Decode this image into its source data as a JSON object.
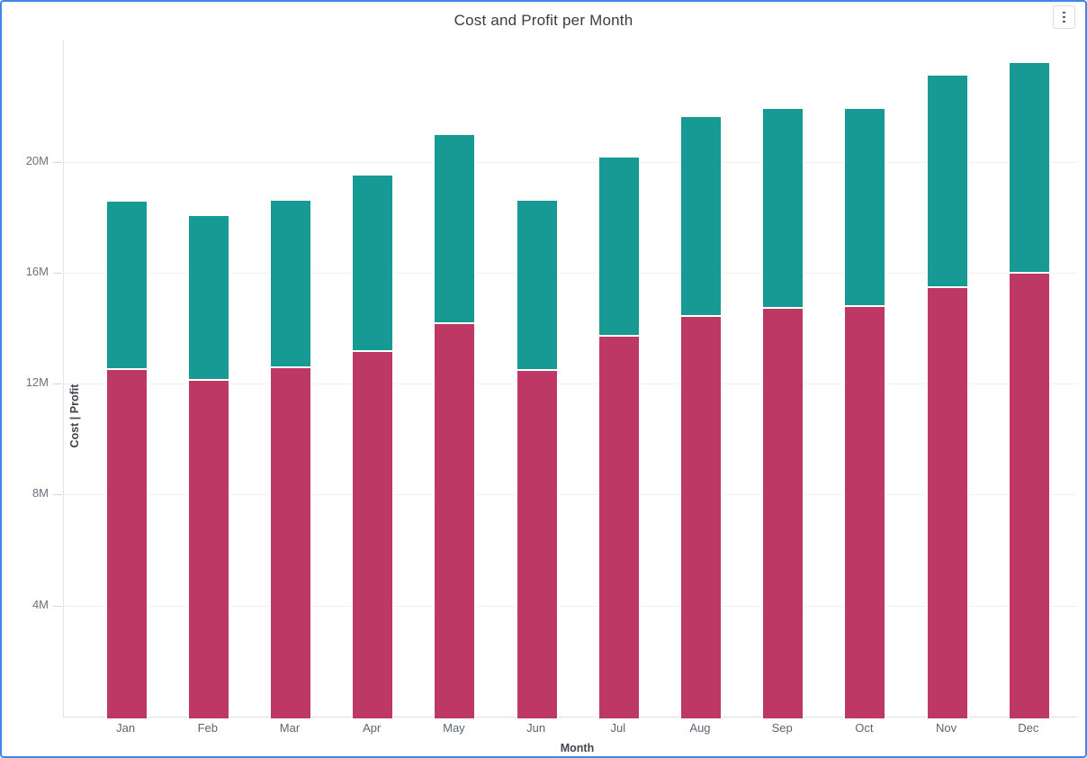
{
  "widget": {
    "selection_border_color": "#3e87e6",
    "menu_icon": "kebab-vertical-icon"
  },
  "chart_data": {
    "type": "bar",
    "stacked": true,
    "title": "Cost and Profit per Month",
    "xlabel": "Month",
    "ylabel": "Cost | Profit",
    "legend": "none",
    "grid": true,
    "unit": "M",
    "ylim": [
      0,
      24.4
    ],
    "y_ticks": [
      {
        "value": 4,
        "label": "4M"
      },
      {
        "value": 8,
        "label": "8M"
      },
      {
        "value": 12,
        "label": "12M"
      },
      {
        "value": 16,
        "label": "16M"
      },
      {
        "value": 20,
        "label": "20M"
      }
    ],
    "categories": [
      "Jan",
      "Feb",
      "Mar",
      "Apr",
      "May",
      "Jun",
      "Jul",
      "Aug",
      "Sep",
      "Oct",
      "Nov",
      "Dec"
    ],
    "series": [
      {
        "name": "Cost",
        "color": "#bd3865",
        "values": [
          12.5,
          12.1,
          12.55,
          13.15,
          14.15,
          12.45,
          13.7,
          14.4,
          14.7,
          14.75,
          15.45,
          15.95
        ]
      },
      {
        "name": "Profit",
        "color": "#189a94",
        "values": [
          6.05,
          5.95,
          6.05,
          6.35,
          6.8,
          6.15,
          6.45,
          7.2,
          7.2,
          7.15,
          7.65,
          7.6
        ]
      }
    ]
  }
}
